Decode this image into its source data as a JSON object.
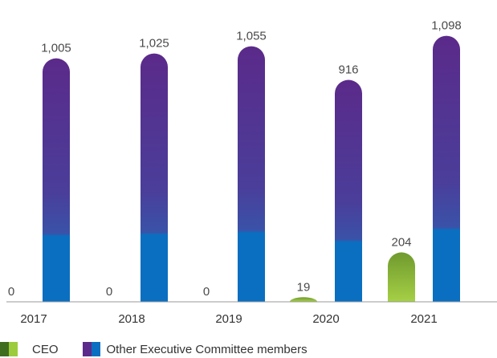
{
  "chart_data": {
    "type": "bar",
    "categories": [
      "2017",
      "2018",
      "2019",
      "2020",
      "2021"
    ],
    "series": [
      {
        "name": "CEO",
        "values": [
          0,
          0,
          0,
          19,
          204
        ],
        "value_labels": [
          "0",
          "0",
          "0",
          "19",
          "204"
        ]
      },
      {
        "name": "Other Executive Committee members",
        "values": [
          1005,
          1025,
          1055,
          916,
          1098
        ],
        "value_labels": [
          "1,005",
          "1,025",
          "1,055",
          "916",
          "1,098"
        ]
      }
    ],
    "ylim": [
      0,
      1100
    ],
    "grid": false,
    "legend_position": "bottom-left",
    "colors": {
      "ceo_top": "#3f6d1e",
      "ceo_bottom": "#9ccc3c",
      "other_top": "#5b2a8a",
      "other_bottom": "#0a6fc0",
      "axis": "#999999"
    }
  }
}
